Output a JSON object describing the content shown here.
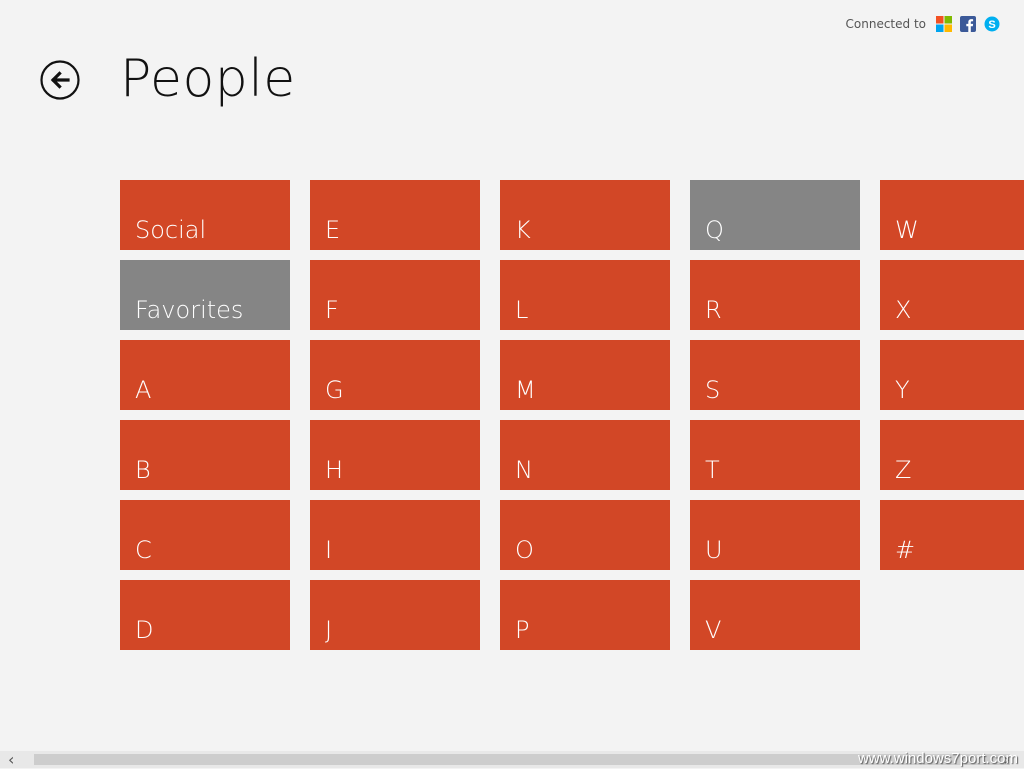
{
  "header": {
    "connected_label": "Connected to",
    "services": [
      "microsoft-icon",
      "facebook-icon",
      "skype-icon"
    ]
  },
  "page_title": "People",
  "tiles": [
    {
      "label": "Social",
      "style": "orange"
    },
    {
      "label": "Favorites",
      "style": "gray"
    },
    {
      "label": "A",
      "style": "orange"
    },
    {
      "label": "B",
      "style": "orange"
    },
    {
      "label": "C",
      "style": "orange"
    },
    {
      "label": "D",
      "style": "orange"
    },
    {
      "label": "E",
      "style": "orange"
    },
    {
      "label": "F",
      "style": "orange"
    },
    {
      "label": "G",
      "style": "orange"
    },
    {
      "label": "H",
      "style": "orange"
    },
    {
      "label": "I",
      "style": "orange"
    },
    {
      "label": "J",
      "style": "orange"
    },
    {
      "label": "K",
      "style": "orange"
    },
    {
      "label": "L",
      "style": "orange"
    },
    {
      "label": "M",
      "style": "orange"
    },
    {
      "label": "N",
      "style": "orange"
    },
    {
      "label": "O",
      "style": "orange"
    },
    {
      "label": "P",
      "style": "orange"
    },
    {
      "label": "Q",
      "style": "gray"
    },
    {
      "label": "R",
      "style": "orange"
    },
    {
      "label": "S",
      "style": "orange"
    },
    {
      "label": "T",
      "style": "orange"
    },
    {
      "label": "U",
      "style": "orange"
    },
    {
      "label": "V",
      "style": "orange"
    },
    {
      "label": "W",
      "style": "orange"
    },
    {
      "label": "X",
      "style": "orange"
    },
    {
      "label": "Y",
      "style": "orange"
    },
    {
      "label": "Z",
      "style": "orange"
    },
    {
      "label": "#",
      "style": "orange"
    }
  ],
  "colors": {
    "tile_accent": "#d24726",
    "tile_gray": "#858585",
    "background": "#f3f3f3"
  },
  "scrollbar": {
    "left_arrow": "‹",
    "right_arrow": "›"
  },
  "watermark": "www.windows7port.com"
}
